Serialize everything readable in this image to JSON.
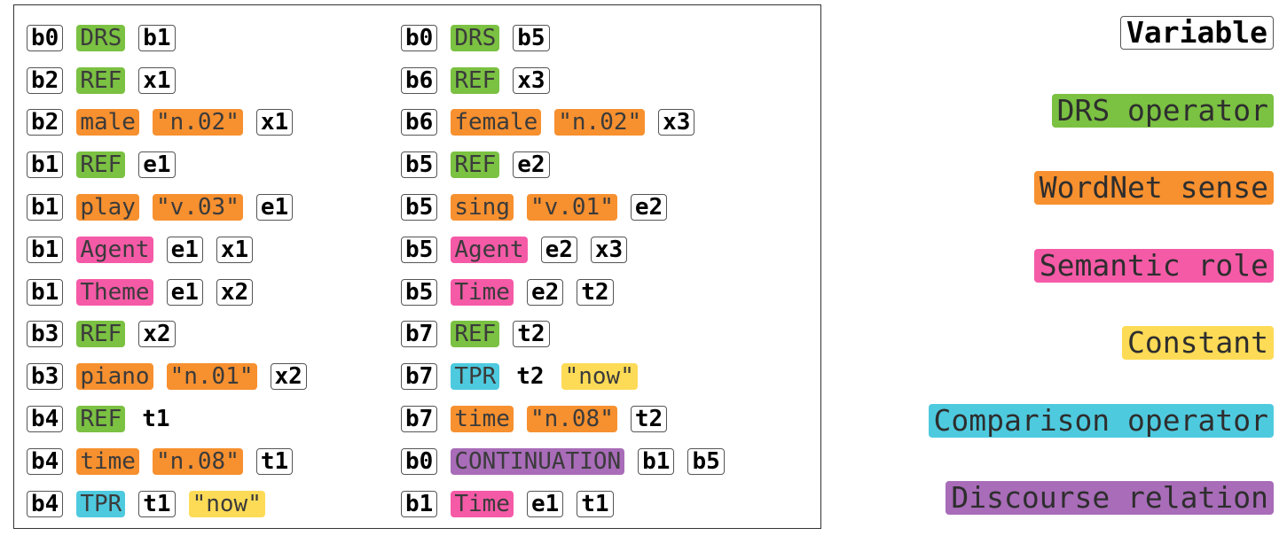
{
  "colors": {
    "drs": "#7bc142",
    "wn": "#f7902f",
    "sem": "#f55aa7",
    "const": "#fddb56",
    "cmp": "#4ecadf",
    "disc": "#a86cb8"
  },
  "legend": [
    {
      "label": "Variable",
      "type": "var"
    },
    {
      "label": "DRS operator",
      "type": "drs"
    },
    {
      "label": "WordNet sense",
      "type": "wn"
    },
    {
      "label": "Semantic role",
      "type": "sem"
    },
    {
      "label": "Constant",
      "type": "const"
    },
    {
      "label": "Comparison operator",
      "type": "cmp"
    },
    {
      "label": "Discourse relation",
      "type": "disc"
    }
  ],
  "clauses_left": [
    [
      {
        "t": "b0",
        "k": "var"
      },
      {
        "t": "DRS",
        "k": "drs"
      },
      {
        "t": "b1",
        "k": "var"
      }
    ],
    [
      {
        "t": "b2",
        "k": "var"
      },
      {
        "t": "REF",
        "k": "drs"
      },
      {
        "t": "x1",
        "k": "var"
      }
    ],
    [
      {
        "t": "b2",
        "k": "var"
      },
      {
        "t": "male",
        "k": "wn"
      },
      {
        "t": "\"n.02\"",
        "k": "wn"
      },
      {
        "t": "x1",
        "k": "var"
      }
    ],
    [
      {
        "t": "b1",
        "k": "var"
      },
      {
        "t": "REF",
        "k": "drs"
      },
      {
        "t": "e1",
        "k": "var"
      }
    ],
    [
      {
        "t": "b1",
        "k": "var"
      },
      {
        "t": "play",
        "k": "wn"
      },
      {
        "t": "\"v.03\"",
        "k": "wn"
      },
      {
        "t": "e1",
        "k": "var"
      }
    ],
    [
      {
        "t": "b1",
        "k": "var"
      },
      {
        "t": "Agent",
        "k": "sem"
      },
      {
        "t": "e1",
        "k": "var"
      },
      {
        "t": "x1",
        "k": "var"
      }
    ],
    [
      {
        "t": "b1",
        "k": "var"
      },
      {
        "t": "Theme",
        "k": "sem"
      },
      {
        "t": "e1",
        "k": "var"
      },
      {
        "t": "x2",
        "k": "var"
      }
    ],
    [
      {
        "t": "b3",
        "k": "var"
      },
      {
        "t": "REF",
        "k": "drs"
      },
      {
        "t": "x2",
        "k": "var"
      }
    ],
    [
      {
        "t": "b3",
        "k": "var"
      },
      {
        "t": "piano",
        "k": "wn"
      },
      {
        "t": "\"n.01\"",
        "k": "wn"
      },
      {
        "t": "x2",
        "k": "var"
      }
    ],
    [
      {
        "t": "b4",
        "k": "var"
      },
      {
        "t": "REF",
        "k": "drs"
      },
      {
        "t": "t1",
        "k": "bare"
      }
    ],
    [
      {
        "t": "b4",
        "k": "var"
      },
      {
        "t": "time",
        "k": "wn"
      },
      {
        "t": "\"n.08\"",
        "k": "wn"
      },
      {
        "t": "t1",
        "k": "var"
      }
    ],
    [
      {
        "t": "b4",
        "k": "var"
      },
      {
        "t": "TPR",
        "k": "cmp"
      },
      {
        "t": "t1",
        "k": "var"
      },
      {
        "t": "\"now\"",
        "k": "const"
      }
    ]
  ],
  "clauses_right": [
    [
      {
        "t": "b0",
        "k": "var"
      },
      {
        "t": "DRS",
        "k": "drs"
      },
      {
        "t": "b5",
        "k": "var"
      }
    ],
    [
      {
        "t": "b6",
        "k": "var"
      },
      {
        "t": "REF",
        "k": "drs"
      },
      {
        "t": "x3",
        "k": "var"
      }
    ],
    [
      {
        "t": "b6",
        "k": "var"
      },
      {
        "t": "female",
        "k": "wn"
      },
      {
        "t": "\"n.02\"",
        "k": "wn"
      },
      {
        "t": "x3",
        "k": "var"
      }
    ],
    [
      {
        "t": "b5",
        "k": "var"
      },
      {
        "t": "REF",
        "k": "drs"
      },
      {
        "t": "e2",
        "k": "var"
      }
    ],
    [
      {
        "t": "b5",
        "k": "var"
      },
      {
        "t": "sing",
        "k": "wn"
      },
      {
        "t": "\"v.01\"",
        "k": "wn"
      },
      {
        "t": "e2",
        "k": "var"
      }
    ],
    [
      {
        "t": "b5",
        "k": "var"
      },
      {
        "t": "Agent",
        "k": "sem"
      },
      {
        "t": "e2",
        "k": "var"
      },
      {
        "t": "x3",
        "k": "var"
      }
    ],
    [
      {
        "t": "b5",
        "k": "var"
      },
      {
        "t": "Time",
        "k": "sem"
      },
      {
        "t": "e2",
        "k": "var"
      },
      {
        "t": "t2",
        "k": "var"
      }
    ],
    [
      {
        "t": "b7",
        "k": "var"
      },
      {
        "t": "REF",
        "k": "drs"
      },
      {
        "t": "t2",
        "k": "var"
      }
    ],
    [
      {
        "t": "b7",
        "k": "var"
      },
      {
        "t": "TPR",
        "k": "cmp"
      },
      {
        "t": "t2",
        "k": "bare"
      },
      {
        "t": "\"now\"",
        "k": "const"
      }
    ],
    [
      {
        "t": "b7",
        "k": "var"
      },
      {
        "t": "time",
        "k": "wn"
      },
      {
        "t": "\"n.08\"",
        "k": "wn"
      },
      {
        "t": "t2",
        "k": "var"
      }
    ],
    [
      {
        "t": "b0",
        "k": "var"
      },
      {
        "t": "CONTINUATION",
        "k": "disc"
      },
      {
        "t": "b1",
        "k": "var"
      },
      {
        "t": "b5",
        "k": "var"
      }
    ],
    [
      {
        "t": "b1",
        "k": "var"
      },
      {
        "t": "Time",
        "k": "sem"
      },
      {
        "t": "e1",
        "k": "var"
      },
      {
        "t": "t1",
        "k": "var"
      }
    ]
  ]
}
